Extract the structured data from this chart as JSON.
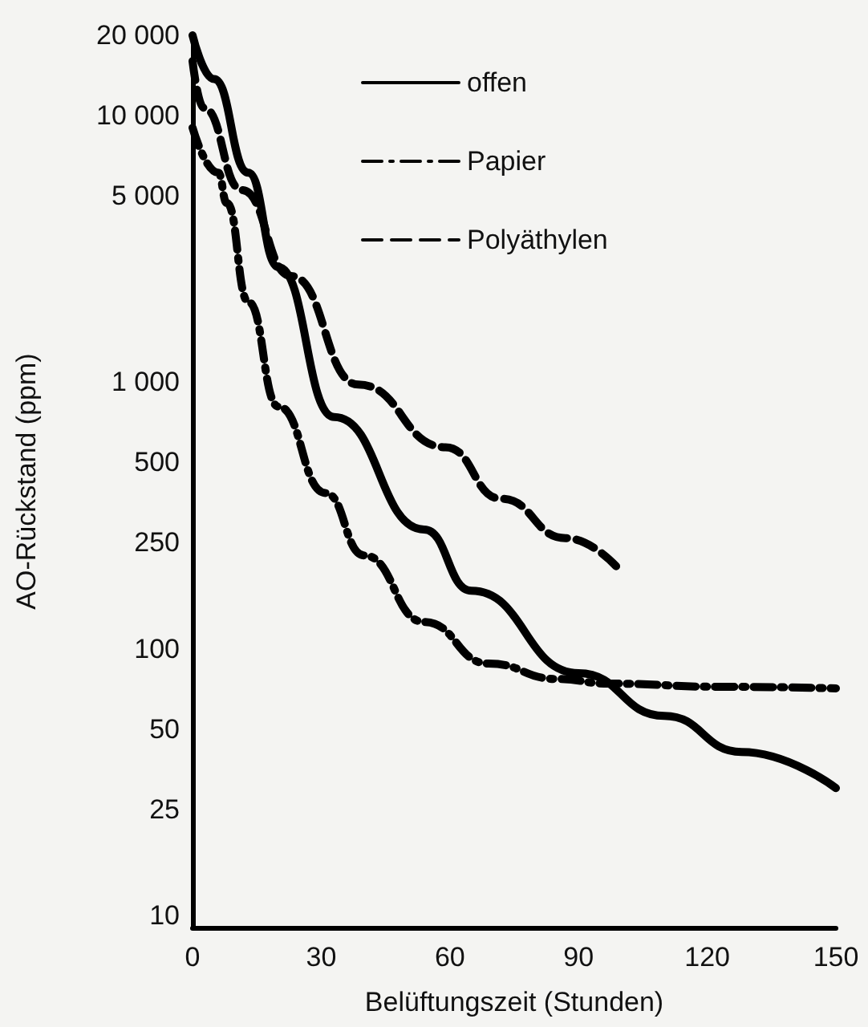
{
  "chart_data": {
    "type": "line",
    "xlabel": "Belüftungszeit (Stunden)",
    "ylabel": "AO-Rückstand (ppm)",
    "series": [
      {
        "name": "offen",
        "color": "#000000",
        "line_style": "solid",
        "x": [
          0,
          5,
          13,
          20,
          33,
          54,
          65,
          90,
          110,
          128,
          150
        ],
        "values": [
          20000,
          13700,
          6100,
          2700,
          740,
          280,
          165,
          81,
          56,
          41,
          30
        ]
      },
      {
        "name": "Papier",
        "color": "#000000",
        "line_style": "dashdot",
        "x": [
          0,
          6,
          8,
          13,
          20,
          31,
          40,
          54,
          69,
          85,
          97,
          123,
          150
        ],
        "values": [
          9000,
          6100,
          4700,
          2000,
          810,
          384,
          224,
          126,
          88,
          77,
          74,
          72,
          71
        ]
      },
      {
        "name": "Polyäthylen",
        "color": "#000000",
        "line_style": "dashed",
        "x": [
          0,
          2.6,
          11.5,
          23,
          38.6,
          59,
          72,
          87,
          100
        ],
        "values": [
          16000,
          10700,
          5250,
          2500,
          980,
          570,
          365,
          260,
          194
        ]
      }
    ],
    "xlim": [
      0,
      150
    ],
    "xticks": [
      0,
      30,
      60,
      90,
      120,
      150
    ],
    "ylim": [
      9,
      20000
    ],
    "yticks": [
      10,
      25,
      50,
      100,
      250,
      500,
      {
        "value": 1000,
        "label": "1 000"
      },
      {
        "value": 5000,
        "label": "5 000"
      },
      {
        "value": 10000,
        "label": "10 000"
      },
      {
        "value": 20000,
        "label": "20 000"
      }
    ],
    "log": true,
    "grid": false,
    "legend": "top",
    "marker": "none"
  }
}
